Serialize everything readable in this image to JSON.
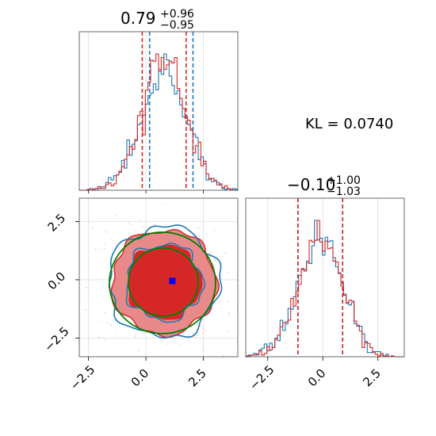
{
  "kl_label": "KL = 0.0740",
  "colors": {
    "series_a": "#1f77b4",
    "series_b": "#d62728",
    "contour_b_fill": "#e88a8a",
    "contour_b_core": "#d62728",
    "ellipse": "#008000",
    "truth_marker": "#0000ff"
  },
  "chart_data": [
    {
      "panel": "marginal-x",
      "type": "histogram",
      "title": {
        "value": "0.79",
        "plus": "+0.96",
        "minus": "−0.95"
      },
      "xlim": [
        -2.9,
        4.0
      ],
      "series": [
        {
          "color": "#1f77b4",
          "quantiles": [
            0.16,
            0.79,
            2.05
          ],
          "center": 0.79,
          "sigma": 1.0
        },
        {
          "color": "#d62728",
          "quantiles": [
            -0.16,
            0.79,
            1.75
          ],
          "center": 0.79,
          "sigma": 0.95
        }
      ]
    },
    {
      "panel": "marginal-y",
      "type": "histogram",
      "title": {
        "value": "−0.10",
        "plus": "+1.00",
        "minus": "−1.03"
      },
      "xlim": [
        -3.5,
        3.7
      ],
      "xticks": [
        "−2.5",
        "0.0",
        "2.5"
      ],
      "series": [
        {
          "color": "#1f77b4",
          "quantiles": [
            -1.13,
            -0.1,
            0.9
          ],
          "center": -0.1,
          "sigma": 1.0
        },
        {
          "color": "#d62728",
          "quantiles": [
            -1.13,
            -0.1,
            0.9
          ],
          "center": -0.1,
          "sigma": 1.0
        }
      ]
    },
    {
      "panel": "joint",
      "type": "scatter",
      "xlim": [
        -2.9,
        4.0
      ],
      "ylim": [
        -3.3,
        3.5
      ],
      "xticks": [
        "−2.5",
        "0.0",
        "2.5"
      ],
      "yticks": [
        "2.5",
        "0.0",
        "−2.5"
      ],
      "center": [
        0.79,
        -0.1
      ],
      "truth": [
        1.15,
        -0.05
      ]
    }
  ]
}
